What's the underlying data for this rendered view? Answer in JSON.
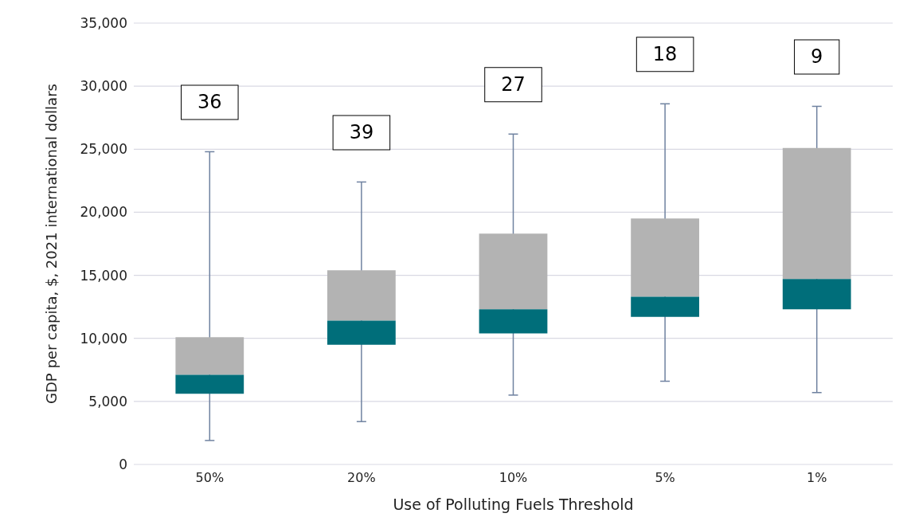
{
  "chart_data": {
    "type": "box",
    "xlabel": "Use of Polluting Fuels Threshold",
    "ylabel": "GDP per capita, $, 2021 international dollars",
    "categories": [
      "50%",
      "20%",
      "10%",
      "5%",
      "1%"
    ],
    "series": [
      {
        "color": "#b3b3b3",
        "colors": [
          "#006e7a",
          "#006e7a",
          "#006e7a",
          "#006e7a",
          "#006e7a"
        ],
        "boxes": [
          {
            "low": 1900,
            "q1": 5600,
            "median": 7100,
            "q3": 10100,
            "high": 24800
          },
          {
            "low": 3400,
            "q1": 9500,
            "median": 11400,
            "q3": 15400,
            "high": 22400
          },
          {
            "low": 5500,
            "q1": 10400,
            "median": 12300,
            "q3": 18300,
            "high": 26200
          },
          {
            "low": 6600,
            "q1": 11700,
            "median": 13300,
            "q3": 19500,
            "high": 28600
          },
          {
            "low": 5700,
            "q1": 12300,
            "median": 14700,
            "q3": 25100,
            "high": 28400
          }
        ]
      }
    ],
    "ylim": [
      0,
      35000
    ],
    "yticks": [
      0,
      {
        "value": 5000,
        "label": "5,000"
      },
      {
        "value": 10000,
        "label": "10,000"
      },
      {
        "value": 15000,
        "label": "15,000"
      },
      {
        "value": 20000,
        "label": "20,000"
      },
      {
        "value": 25000,
        "label": "25,000"
      },
      {
        "value": 30000,
        "label": "30,000"
      },
      {
        "value": 35000,
        "label": "35,000"
      }
    ],
    "grid": "y",
    "annotations": [
      "36",
      "39",
      "27",
      "18",
      "9"
    ]
  }
}
